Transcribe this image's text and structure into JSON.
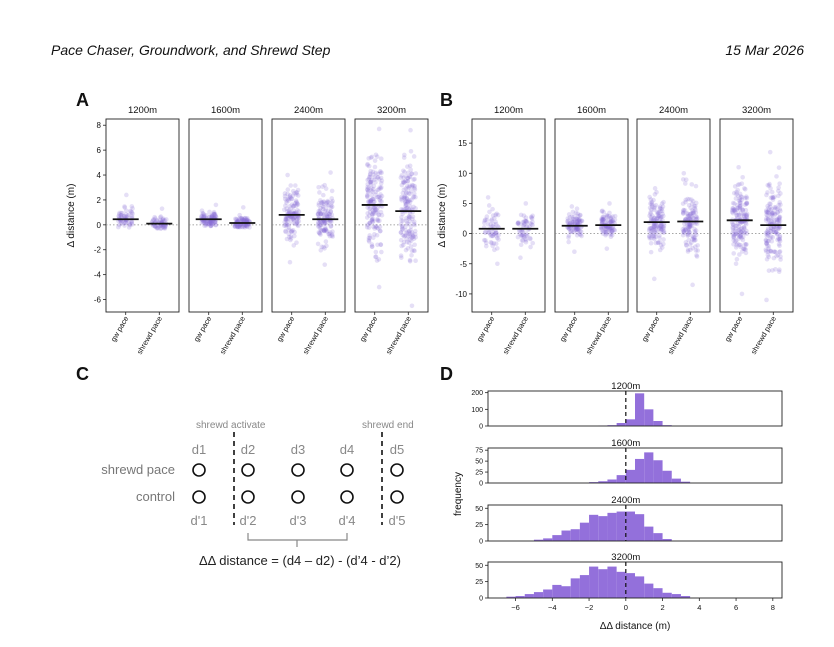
{
  "header": {
    "title": "Pace Chaser, Groundwork, and Shrewd Step",
    "date": "15 Mar 2026"
  },
  "panels": {
    "A": "A",
    "B": "B",
    "C": "C",
    "D": "D"
  },
  "chart_data": [
    {
      "id": "A",
      "type": "scatter",
      "style": "strip plot with mean bars",
      "ylabel": "Δ distance (m)",
      "ylim": [
        -7,
        8.5
      ],
      "yticks": [
        -6,
        -4,
        -2,
        0,
        2,
        4,
        6,
        8
      ],
      "facets": [
        "1200m",
        "1600m",
        "2400m",
        "3200m"
      ],
      "categories": [
        "gw pace",
        "shrewd pace"
      ],
      "means": [
        [
          0.45,
          0.1
        ],
        [
          0.45,
          0.15
        ],
        [
          0.8,
          0.45
        ],
        [
          1.6,
          1.1
        ]
      ],
      "ranges": [
        [
          [
            -0.2,
            2.4
          ],
          [
            -0.3,
            1.3
          ]
        ],
        [
          [
            -0.1,
            1.6
          ],
          [
            -0.2,
            1.4
          ]
        ],
        [
          [
            -3,
            4
          ],
          [
            -3.2,
            4.2
          ]
        ],
        [
          [
            -5,
            7.7
          ],
          [
            -6.5,
            7.6
          ]
        ]
      ],
      "point_color": "#8a6fd8",
      "zero_line": "dotted"
    },
    {
      "id": "B",
      "type": "scatter",
      "style": "strip plot with mean bars",
      "ylabel": "Δ distance (m)",
      "ylim": [
        -13,
        19
      ],
      "yticks": [
        -10,
        -5,
        0,
        5,
        10,
        15
      ],
      "facets": [
        "1200m",
        "1600m",
        "2400m",
        "3200m"
      ],
      "categories": [
        "gw pace",
        "shrewd pace"
      ],
      "means": [
        [
          0.8,
          0.8
        ],
        [
          1.3,
          1.4
        ],
        [
          1.9,
          2.0
        ],
        [
          2.2,
          1.4
        ]
      ],
      "ranges": [
        [
          [
            -5,
            6
          ],
          [
            -4,
            5
          ]
        ],
        [
          [
            -3,
            4.5
          ],
          [
            -2.5,
            5
          ]
        ],
        [
          [
            -7.5,
            7.5
          ],
          [
            -8.5,
            10
          ]
        ],
        [
          [
            -10,
            11
          ],
          [
            -11,
            13.5
          ]
        ]
      ],
      "point_color": "#8a6fd8",
      "zero_line": "dotted"
    },
    {
      "id": "D",
      "type": "bar",
      "style": "stacked histograms",
      "xlabel": "ΔΔ distance (m)",
      "ylabel": "frequency",
      "xlim": [
        -7.5,
        8.5
      ],
      "xticks": [
        -6,
        -4,
        -2,
        0,
        2,
        4,
        6,
        8
      ],
      "bin_width": 0.5,
      "bar_color": "#9370db",
      "zero_line": "dashed",
      "histograms": [
        {
          "label": "1200m",
          "bin_start": -1.5,
          "counts": [
            2,
            5,
            18,
            40,
            196,
            100,
            30,
            5
          ],
          "ylim": [
            0,
            210
          ],
          "yticks": [
            0,
            100,
            200
          ]
        },
        {
          "label": "1600m",
          "bin_start": -2.0,
          "counts": [
            2,
            4,
            8,
            18,
            30,
            55,
            70,
            52,
            28,
            10,
            3
          ],
          "ylim": [
            0,
            80
          ],
          "yticks": [
            0,
            25,
            50,
            75
          ]
        },
        {
          "label": "2400m",
          "bin_start": -5.0,
          "counts": [
            2,
            4,
            9,
            16,
            18,
            28,
            40,
            38,
            43,
            45,
            45,
            41,
            22,
            12,
            3
          ],
          "ylim": [
            0,
            55
          ],
          "yticks": [
            0,
            25,
            50
          ]
        },
        {
          "label": "3200m",
          "bin_start": -6.5,
          "counts": [
            2,
            3,
            6,
            9,
            13,
            20,
            18,
            30,
            35,
            48,
            44,
            48,
            40,
            38,
            33,
            22,
            15,
            8,
            6,
            3
          ],
          "ylim": [
            0,
            55
          ],
          "yticks": [
            0,
            25,
            50
          ]
        }
      ]
    }
  ],
  "diagram_c": {
    "top_labels": [
      "shrewd activate",
      "shrewd end"
    ],
    "row_labels": [
      "shrewd pace",
      "control"
    ],
    "top_points": [
      "d1",
      "d2",
      "d3",
      "d4",
      "d5"
    ],
    "bottom_points": [
      "d'1",
      "d'2",
      "d'3",
      "d'4",
      "d'5"
    ],
    "equation": "ΔΔ distance = (d4 – d2) - (d’4 - d’2)"
  }
}
